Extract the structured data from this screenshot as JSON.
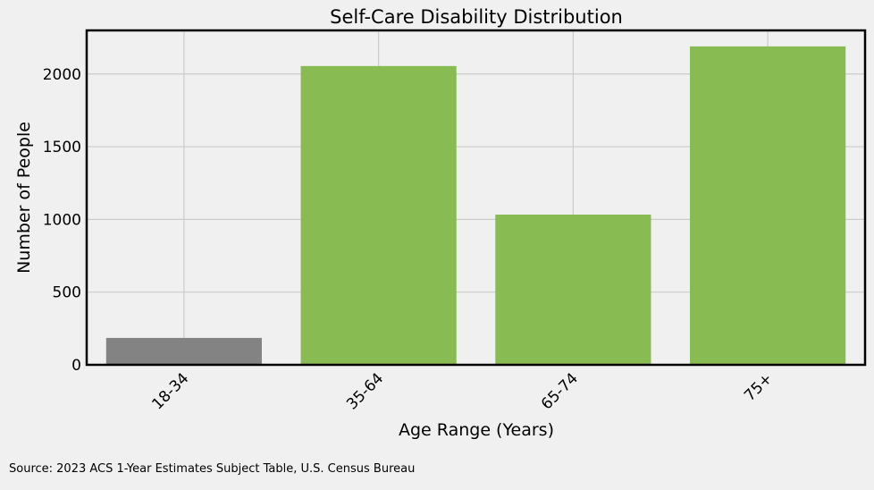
{
  "chart_data": {
    "type": "bar",
    "title": "Self-Care Disability Distribution",
    "xlabel": "Age Range (Years)",
    "ylabel": "Number of People",
    "categories": [
      "18-34",
      "35-64",
      "65-74",
      "75+"
    ],
    "values": [
      185,
      2055,
      1033,
      2190
    ],
    "bar_colors": [
      "#838383",
      "#88bb52",
      "#88bb52",
      "#88bb52"
    ],
    "ylim": [
      0,
      2300
    ],
    "yticks": [
      0,
      500,
      1000,
      1500,
      2000
    ],
    "grid": true,
    "legend": "none"
  },
  "colors": {
    "background": "#f0f0f0",
    "grid": "#cbcbcb",
    "axes": "#000000"
  },
  "source_note": "Source: 2023 ACS 1-Year Estimates Subject Table, U.S. Census Bureau"
}
